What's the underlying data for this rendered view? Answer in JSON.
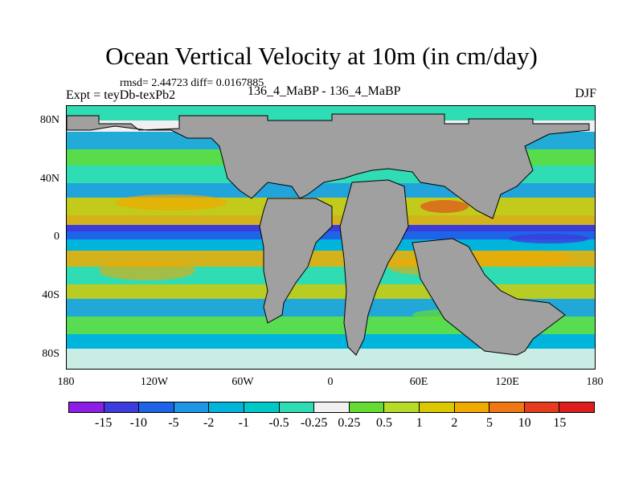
{
  "title": "Ocean Vertical Velocity at 10m (in cm/day)",
  "stats": "rmsd= 2.44723 diff= 0.0167885",
  "experiment": "Expt = teyDb-texPb2",
  "case": "136_4_MaBP - 136_4_MaBP",
  "season": "DJF",
  "map": {
    "lat_labels": [
      "80N",
      "40N",
      "0",
      "40S",
      "80S"
    ],
    "lon_labels": [
      "180",
      "120W",
      "60W",
      "0",
      "60E",
      "120E",
      "180"
    ],
    "land_color": "#a0a0a0",
    "ocean_base_color": "#00c8c8"
  },
  "colorbar": {
    "labels": [
      "-15",
      "-10",
      "-5",
      "-2",
      "-1",
      "-0.5",
      "-0.25",
      "0.25",
      "0.5",
      "1",
      "2",
      "5",
      "10",
      "15"
    ],
    "colors": [
      "#8c1ee6",
      "#3c3cdc",
      "#1e64e6",
      "#1e96e6",
      "#00b4dc",
      "#00c8c8",
      "#30dcb4",
      "#f0f0f0",
      "#64dc32",
      "#b4dc28",
      "#dcc800",
      "#f0aa00",
      "#f07814",
      "#e63c1e",
      "#dc1e1e"
    ]
  }
}
